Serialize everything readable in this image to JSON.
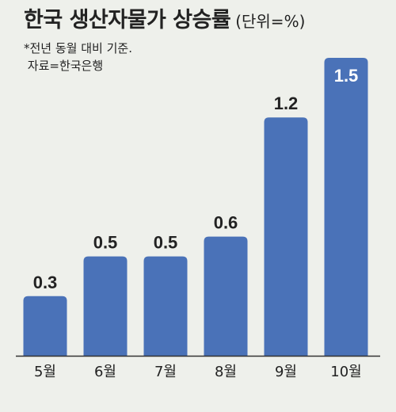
{
  "chart_data": {
    "type": "bar",
    "title": "한국 생산자물가 상승률",
    "unit": "(단위=%)",
    "note": "*전년 동월 대비 기준.",
    "source": "자료=한국은행",
    "categories": [
      "5월",
      "6월",
      "7월",
      "8월",
      "9월",
      "10월"
    ],
    "values": [
      0.3,
      0.5,
      0.5,
      0.6,
      1.2,
      1.5
    ],
    "value_labels": [
      "0.3",
      "0.5",
      "0.5",
      "0.6",
      "1.2",
      "1.5"
    ],
    "ylim": [
      0,
      1.5
    ],
    "grid": false,
    "legend": "none",
    "bar_color": "#4a72b8"
  }
}
